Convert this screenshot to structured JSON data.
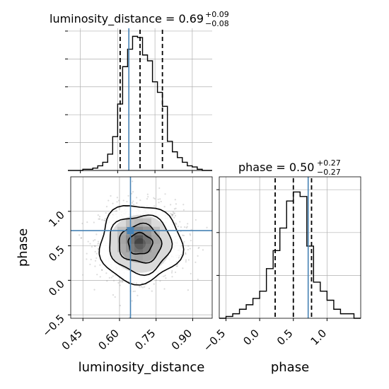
{
  "chart_data": {
    "type": "corner",
    "parameters": [
      "luminosity_distance",
      "phase"
    ],
    "truths": {
      "luminosity_distance": 0.645,
      "phase": 0.72
    },
    "panels": [
      {
        "type": "histogram",
        "parameter": "luminosity_distance",
        "title": {
          "text": "luminosity_distance = 0.69",
          "plus": "+0.09",
          "minus": "−0.08"
        },
        "median": 0.69,
        "quantiles": [
          0.61,
          0.78
        ],
        "xlim": [
          0.4,
          0.98
        ],
        "bin_edges": [
          0.4,
          0.42,
          0.44,
          0.46,
          0.48,
          0.5,
          0.52,
          0.54,
          0.56,
          0.58,
          0.6,
          0.62,
          0.64,
          0.66,
          0.68,
          0.7,
          0.72,
          0.74,
          0.76,
          0.78,
          0.8,
          0.82,
          0.84,
          0.86,
          0.88,
          0.9,
          0.92,
          0.94,
          0.96,
          0.98
        ],
        "counts": [
          0,
          0,
          0,
          1,
          1,
          2,
          4,
          7,
          14,
          29,
          57,
          89,
          104,
          115,
          114,
          99,
          94,
          76,
          67,
          55,
          25,
          16,
          11,
          7,
          4,
          3,
          1,
          0,
          0
        ]
      },
      {
        "type": "histogram",
        "parameter": "phase",
        "title": {
          "text": "phase = 0.50",
          "plus": "+0.27",
          "minus": "−0.27"
        },
        "median": 0.5,
        "quantiles": [
          0.23,
          0.77
        ],
        "xlim": [
          -0.6,
          1.5
        ],
        "bin_edges": [
          -0.6,
          -0.5,
          -0.4,
          -0.3,
          -0.2,
          -0.1,
          0.0,
          0.1,
          0.2,
          0.3,
          0.4,
          0.5,
          0.6,
          0.7,
          0.8,
          0.9,
          1.0,
          1.1,
          1.2,
          1.3,
          1.4,
          1.5
        ],
        "counts": [
          0,
          2,
          5,
          10,
          15,
          22,
          30,
          55,
          75,
          100,
          130,
          140,
          135,
          80,
          40,
          30,
          20,
          10,
          5,
          5,
          0
        ]
      },
      {
        "type": "2d-density",
        "x": "luminosity_distance",
        "y": "phase",
        "xlim": [
          0.4,
          0.98
        ],
        "ylim": [
          -0.55,
          1.5
        ],
        "center": [
          0.69,
          0.55
        ]
      }
    ],
    "x_ticks": {
      "luminosity_distance": [
        "0.45",
        "0.60",
        "0.75",
        "0.90"
      ],
      "phase": [
        "−0.5",
        "0.0",
        "0.5",
        "1.0"
      ]
    },
    "y_ticks": {
      "phase": [
        "−0.5",
        "0.0",
        "0.5",
        "1.0"
      ]
    },
    "xlabels": [
      "luminosity_distance",
      "phase"
    ],
    "ylabel": "phase",
    "grid": true,
    "truth_color": "#4682b4"
  }
}
